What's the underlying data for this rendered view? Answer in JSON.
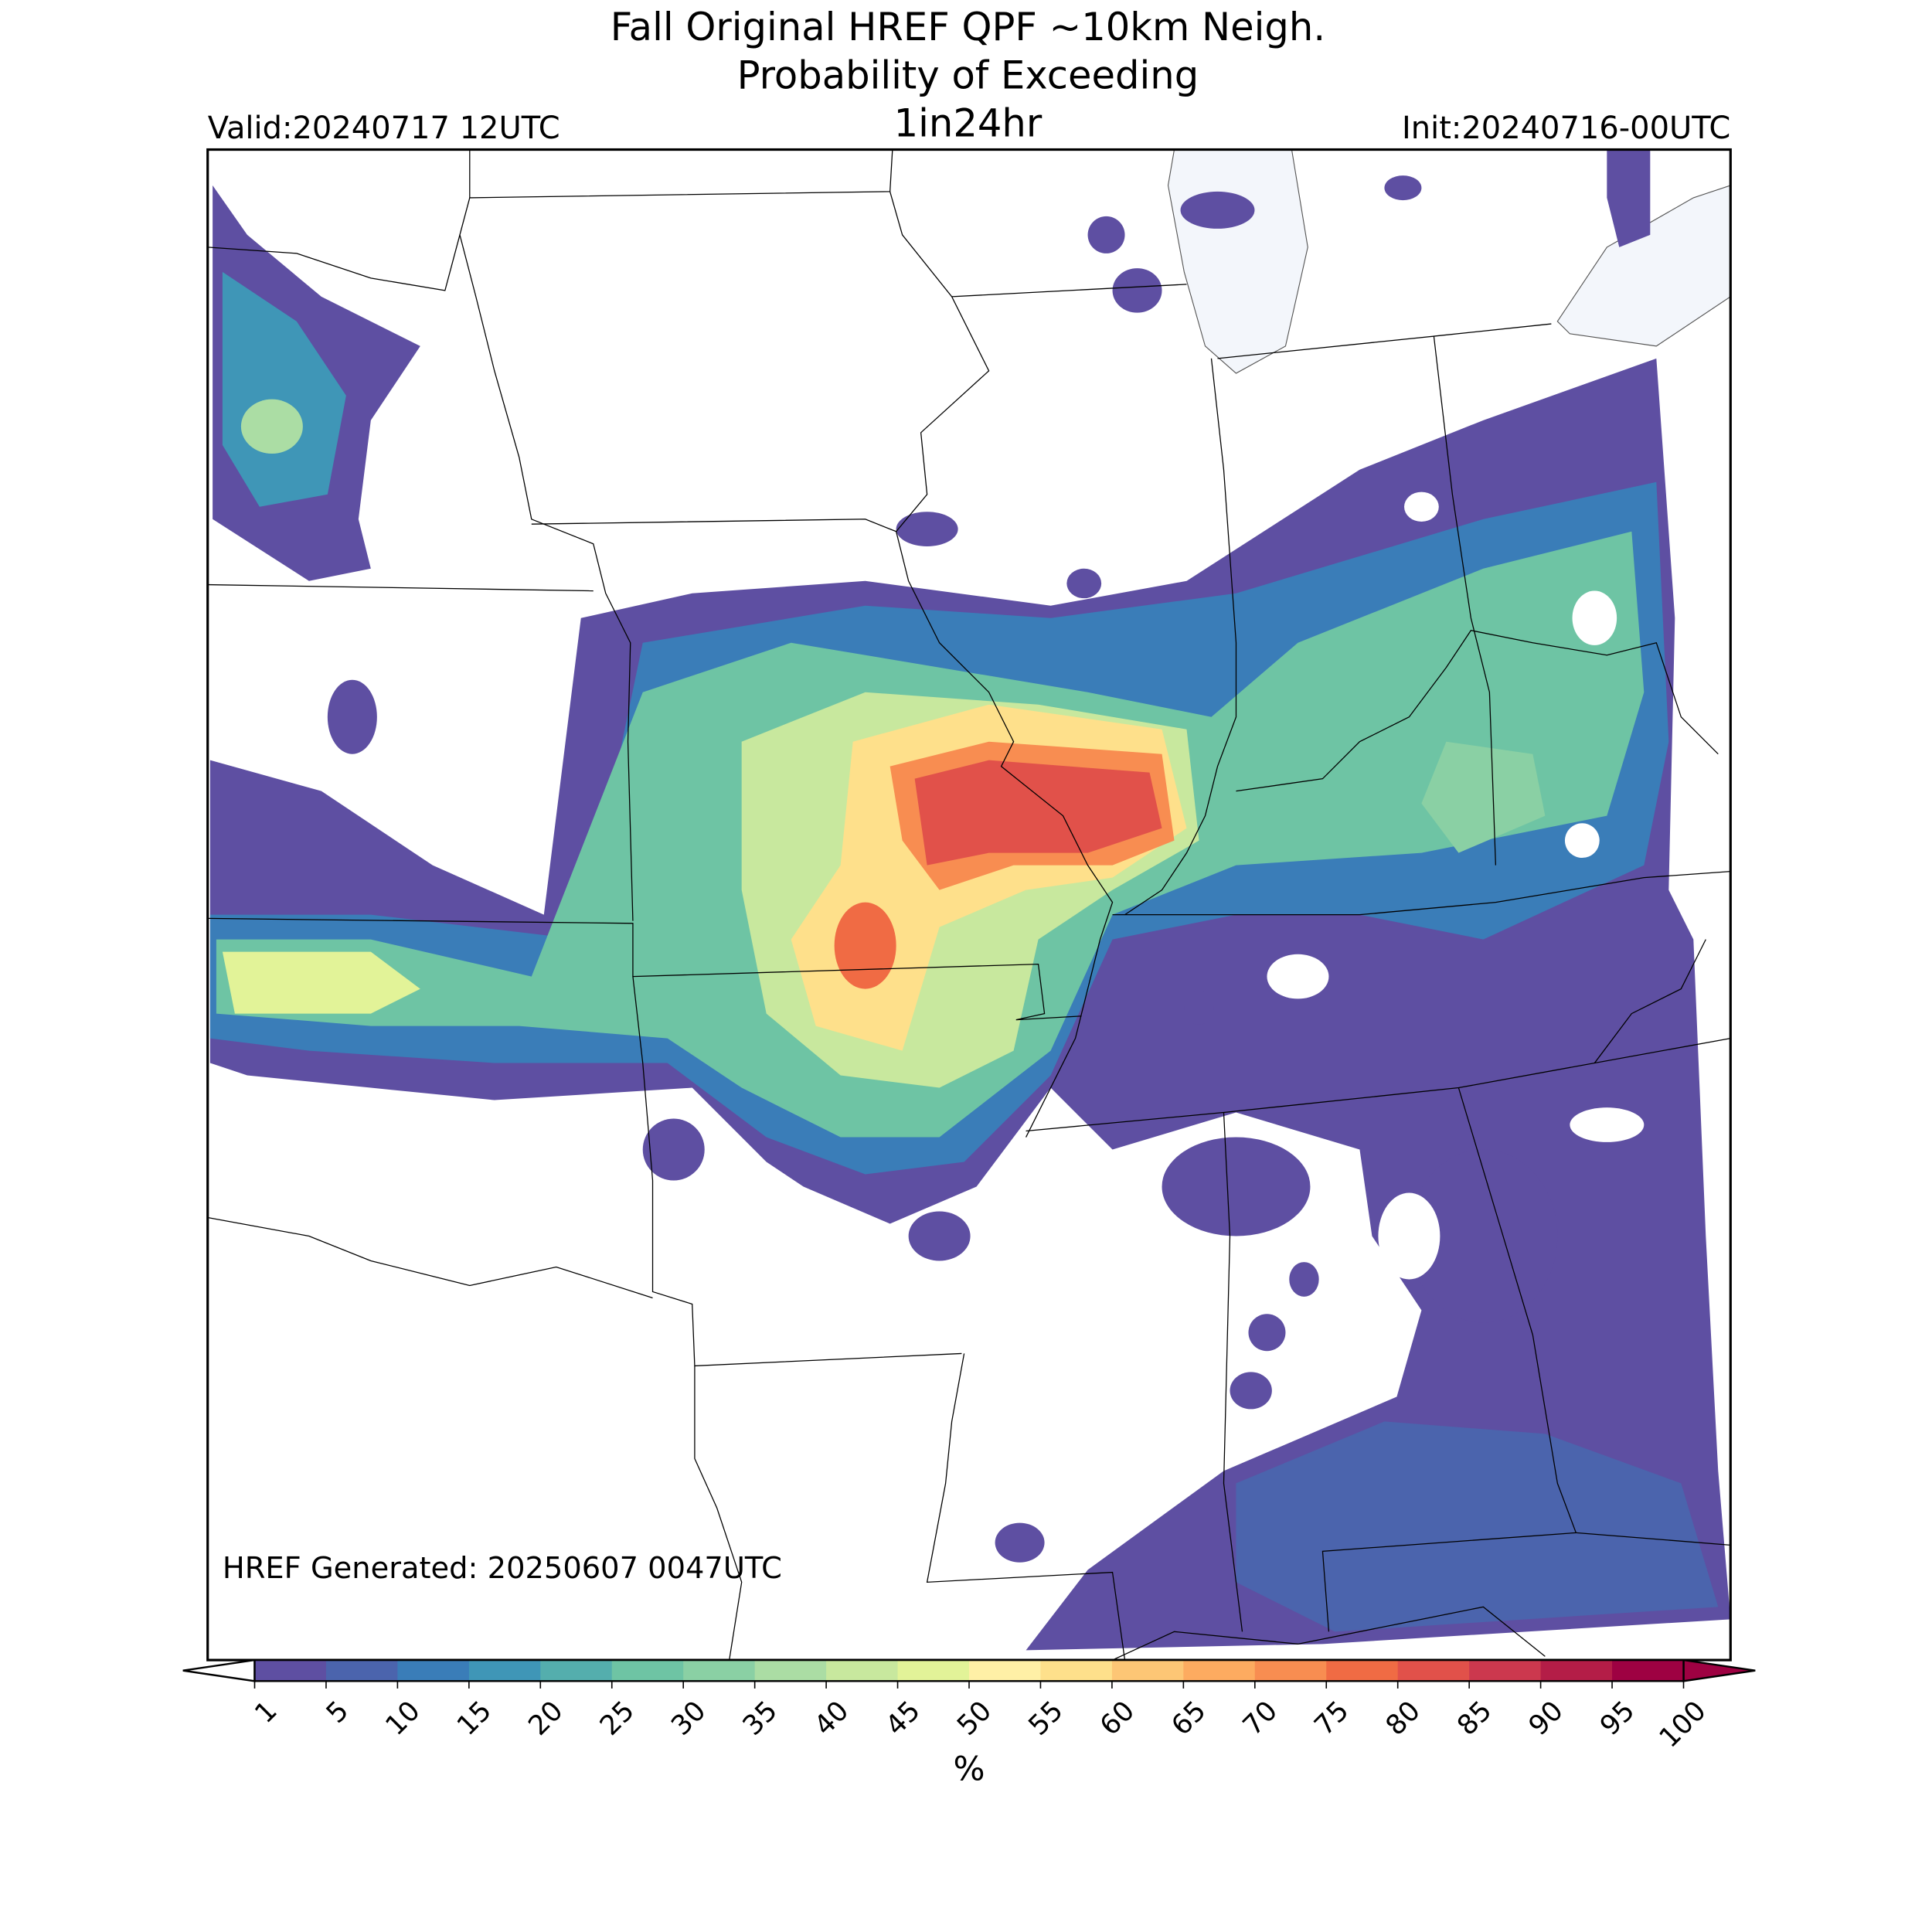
{
  "title": {
    "line1": "Fall Original HREF QPF ~10km Neigh.",
    "line2": "Probability of Exceeding",
    "line3": "1in24hr"
  },
  "valid": "Valid:20240717 12UTC",
  "init": "Init:20240716-00UTC",
  "generated": "HREF Generated: 20250607 0047UTC",
  "colorbar": {
    "label": "%",
    "ticks": [
      1,
      5,
      10,
      15,
      20,
      25,
      30,
      35,
      40,
      45,
      50,
      55,
      60,
      65,
      70,
      75,
      80,
      85,
      90,
      95,
      100
    ],
    "colors": [
      "#5e4fa2",
      "#4b64ad",
      "#3a7db8",
      "#3f96b7",
      "#54aead",
      "#6ec4a4",
      "#8ad0a4",
      "#abdda4",
      "#c8e89e",
      "#e2f398",
      "#fff0a6",
      "#fee08b",
      "#fdc675",
      "#fdab60",
      "#f88d51",
      "#f06b44",
      "#e1514a",
      "#cc384e",
      "#b41d47",
      "#9e0142"
    ],
    "under_color": "#ffffff",
    "over_color": "#9e0142"
  }
}
